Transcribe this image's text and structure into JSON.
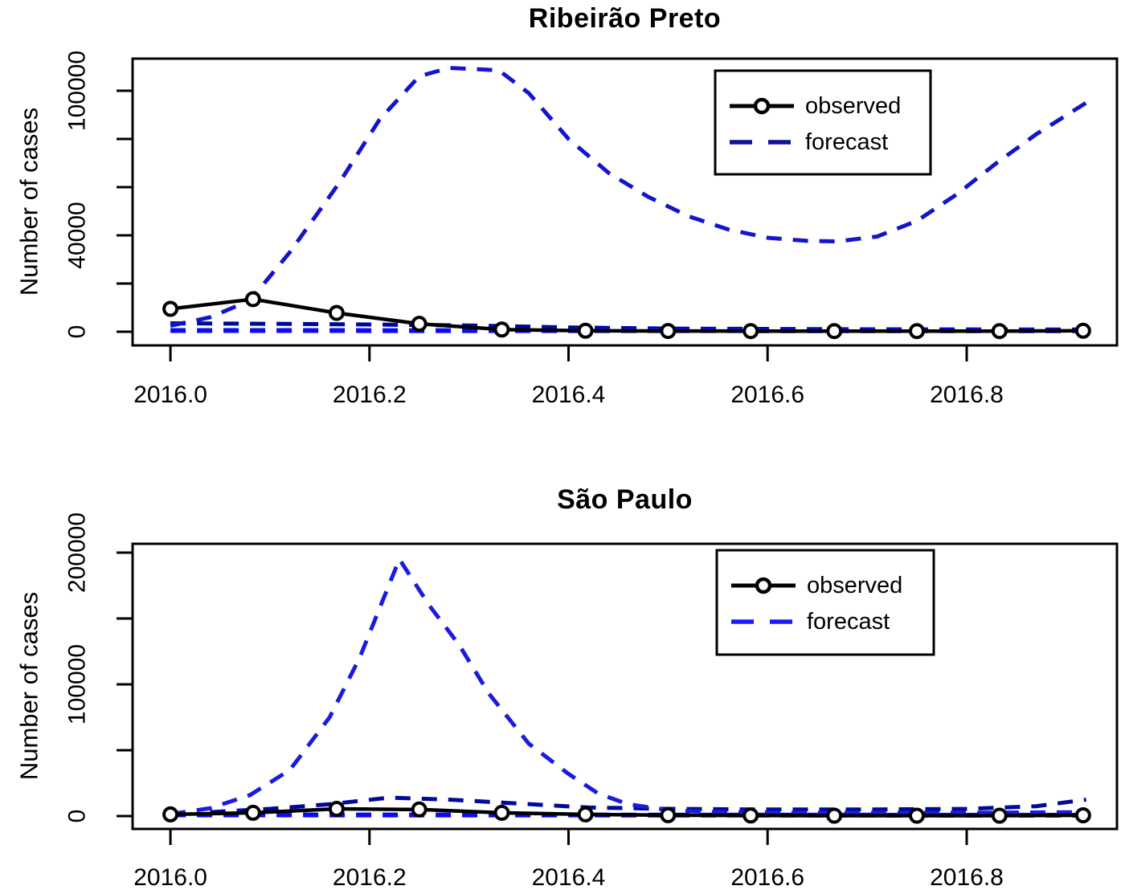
{
  "figure": {
    "description": "Two stacked R base-graphics line charts comparing observed vs forecast dengue case counts in 2016",
    "background": "#ffffff"
  },
  "colors": {
    "observed": "#000000",
    "forecast_main_top": "#1414cc",
    "forecast_main_bottom": "#1b1be0",
    "forecast_band_navy": "#000a99",
    "forecast_band_bright": "#0b0bf2",
    "axis": "#000000"
  },
  "chart_data": [
    {
      "type": "line",
      "title": "Ribeirão Preto",
      "xlabel": "",
      "ylabel": "Number of cases",
      "xlim": [
        2015.962,
        2016.951
      ],
      "ylim": [
        -5667,
        113333
      ],
      "grid": false,
      "x_ticks": [
        2016.0,
        2016.2,
        2016.4,
        2016.6,
        2016.8
      ],
      "x_tick_labels": [
        "2016.0",
        "2016.2",
        "2016.4",
        "2016.6",
        "2016.8"
      ],
      "y_ticks": [
        0,
        20000,
        40000,
        60000,
        80000,
        100000
      ],
      "y_tick_labels": [
        "0",
        "",
        "40000",
        "",
        "",
        "100000"
      ],
      "legend": {
        "position": "top-right",
        "items": [
          {
            "label": "observed",
            "style": "solid-line-circle-marker",
            "color": "#000000"
          },
          {
            "label": "forecast",
            "style": "dashed-line",
            "color": "#101099"
          }
        ]
      },
      "series": [
        {
          "name": "forecast-band-upper",
          "style": "dashed",
          "color": "#000a99",
          "width": 5,
          "x": [
            2016.0,
            2016.1,
            2016.2,
            2016.3,
            2016.4,
            2016.5,
            2016.7,
            2016.92
          ],
          "y": [
            3500,
            3300,
            3000,
            2600,
            1800,
            1300,
            1000,
            900
          ]
        },
        {
          "name": "forecast-band-lower",
          "style": "dashed",
          "color": "#0b0bf2",
          "width": 6,
          "x": [
            2016.0,
            2016.92
          ],
          "y": [
            500,
            400
          ]
        },
        {
          "name": "forecast",
          "style": "dashed",
          "color": "#1414cc",
          "width": 5,
          "x": [
            2016.0,
            2016.04,
            2016.08,
            2016.12,
            2016.17,
            2016.21,
            2016.25,
            2016.28,
            2016.33,
            2016.36,
            2016.4,
            2016.44,
            2016.48,
            2016.52,
            2016.56,
            2016.6,
            2016.64,
            2016.67,
            2016.71,
            2016.75,
            2016.79,
            2016.83,
            2016.87,
            2016.92
          ],
          "y": [
            2500,
            6000,
            13000,
            33000,
            62000,
            88000,
            106000,
            109500,
            108500,
            99000,
            80000,
            66000,
            56000,
            48000,
            42500,
            39000,
            37700,
            37500,
            39500,
            46000,
            57000,
            70000,
            82000,
            95000
          ]
        },
        {
          "name": "observed",
          "style": "solid",
          "color": "#000000",
          "width": 4.5,
          "markers": true,
          "x": [
            2016.0,
            2016.083,
            2016.167,
            2016.25,
            2016.333,
            2016.417,
            2016.5,
            2016.583,
            2016.667,
            2016.75,
            2016.833,
            2016.917
          ],
          "y": [
            9500,
            13500,
            7800,
            3300,
            900,
            400,
            300,
            250,
            250,
            250,
            250,
            400
          ]
        }
      ]
    },
    {
      "type": "line",
      "title": "São Paulo",
      "xlabel": "",
      "ylabel": "Number of cases",
      "xlim": [
        2015.962,
        2016.951
      ],
      "ylim": [
        -9756,
        206707
      ],
      "grid": false,
      "x_ticks": [
        2016.0,
        2016.2,
        2016.4,
        2016.6,
        2016.8
      ],
      "x_tick_labels": [
        "2016.0",
        "2016.2",
        "2016.4",
        "2016.6",
        "2016.8"
      ],
      "y_ticks": [
        0,
        50000,
        100000,
        150000,
        200000
      ],
      "y_tick_labels": [
        "0",
        "",
        "100000",
        "",
        "200000"
      ],
      "legend": {
        "position": "top-right",
        "items": [
          {
            "label": "observed",
            "style": "solid-line-circle-marker",
            "color": "#000000"
          },
          {
            "label": "forecast",
            "style": "dashed-line",
            "color": "#1a1aff"
          }
        ]
      },
      "series": [
        {
          "name": "forecast-band-upper",
          "style": "dashed",
          "color": "#000a99",
          "width": 5,
          "x": [
            2016.04,
            2016.1,
            2016.16,
            2016.22,
            2016.28,
            2016.35,
            2016.42,
            2016.5,
            2016.6,
            2016.7,
            2016.8,
            2016.87,
            2016.92
          ],
          "y": [
            3000,
            5500,
            9000,
            14000,
            12500,
            9500,
            6500,
            5500,
            5000,
            5000,
            5500,
            7500,
            12500
          ]
        },
        {
          "name": "forecast-band-lower",
          "style": "dashed",
          "color": "#0b0bf2",
          "width": 6,
          "x": [
            2016.0,
            2016.92
          ],
          "y": [
            900,
            700
          ]
        },
        {
          "name": "forecast",
          "style": "dashed",
          "color": "#1b1be0",
          "width": 5,
          "x": [
            2016.0,
            2016.04,
            2016.08,
            2016.12,
            2016.16,
            2016.19,
            2016.23,
            2016.26,
            2016.29,
            2016.32,
            2016.36,
            2016.4,
            2016.43,
            2016.46,
            2016.5,
            2016.55,
            2016.62,
            2016.7,
            2016.8,
            2016.92
          ],
          "y": [
            1500,
            6000,
            16000,
            35000,
            75000,
            120000,
            195000,
            160000,
            130000,
            93000,
            55000,
            32000,
            17000,
            9000,
            4500,
            3000,
            2600,
            2500,
            2500,
            3000
          ]
        },
        {
          "name": "observed",
          "style": "solid",
          "color": "#000000",
          "width": 4.5,
          "markers": true,
          "x": [
            2016.0,
            2016.083,
            2016.167,
            2016.25,
            2016.333,
            2016.417,
            2016.5,
            2016.583,
            2016.667,
            2016.75,
            2016.833,
            2016.917
          ],
          "y": [
            1300,
            2500,
            5500,
            5000,
            2500,
            1300,
            700,
            400,
            300,
            300,
            300,
            600
          ]
        }
      ]
    }
  ]
}
